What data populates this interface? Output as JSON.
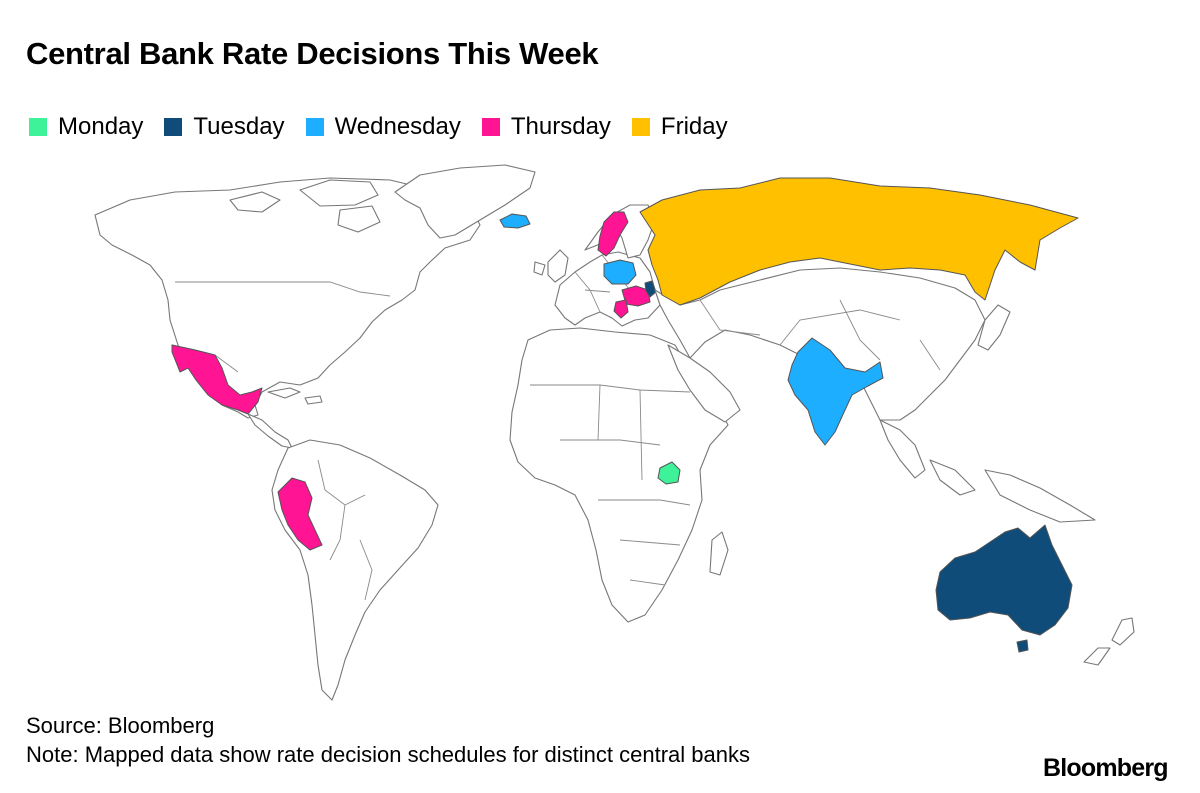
{
  "title": "Central Bank Rate Decisions This Week",
  "legend": [
    {
      "label": "Monday",
      "color": "#3ef29a"
    },
    {
      "label": "Tuesday",
      "color": "#0f4c7a"
    },
    {
      "label": "Wednesday",
      "color": "#1eaeff"
    },
    {
      "label": "Thursday",
      "color": "#ff1493"
    },
    {
      "label": "Friday",
      "color": "#ffc000"
    }
  ],
  "map": {
    "highlighted": [
      {
        "country": "Uganda",
        "day": "Monday"
      },
      {
        "country": "Australia",
        "day": "Tuesday"
      },
      {
        "country": "Moldova",
        "day": "Tuesday"
      },
      {
        "country": "Iceland",
        "day": "Wednesday"
      },
      {
        "country": "Poland",
        "day": "Wednesday"
      },
      {
        "country": "India",
        "day": "Wednesday"
      },
      {
        "country": "Sweden",
        "day": "Thursday"
      },
      {
        "country": "Romania",
        "day": "Thursday"
      },
      {
        "country": "Serbia",
        "day": "Thursday"
      },
      {
        "country": "Mexico",
        "day": "Thursday"
      },
      {
        "country": "Peru",
        "day": "Thursday"
      },
      {
        "country": "Russia",
        "day": "Friday"
      }
    ]
  },
  "footer": {
    "source": "Source: Bloomberg",
    "note": "Note: Mapped data show rate decision schedules for distinct central banks",
    "logo": "Bloomberg"
  }
}
